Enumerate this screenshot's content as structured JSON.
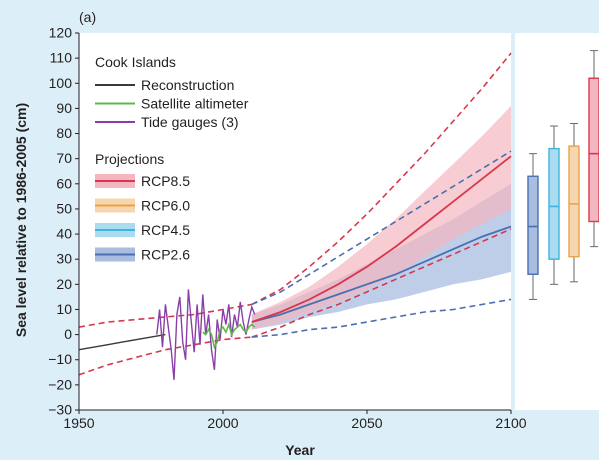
{
  "panel_label": "(a)",
  "chart_data": {
    "type": "line",
    "xlabel": "Year",
    "ylabel": "Sea level relative to 1986-2005 (cm)",
    "xlim": [
      1950,
      2100
    ],
    "ylim": [
      -30,
      120
    ],
    "x_ticks": [
      1950,
      2000,
      2050,
      2100
    ],
    "y_ticks": [
      120,
      110,
      100,
      90,
      80,
      70,
      60,
      50,
      40,
      30,
      20,
      10,
      0,
      -10,
      -20,
      -30
    ],
    "grid": false,
    "legend": {
      "location": "top-left",
      "title": "Cook Islands",
      "observations": [
        {
          "label": "Reconstruction",
          "color": "#3a3a3a"
        },
        {
          "label": "Satellite altimeter",
          "color": "#5cb84a"
        },
        {
          "label": "Tide gauges (3)",
          "color": "#8a3fa6"
        }
      ],
      "projections_title": "Projections",
      "projections": [
        {
          "label": "RCP8.5",
          "color": "#d8374c",
          "fill": "#f4b7c1"
        },
        {
          "label": "RCP6.0",
          "color": "#e8a24a",
          "fill": "#f6d6ae"
        },
        {
          "label": "RCP4.5",
          "color": "#3fb4dc",
          "fill": "#a9dcf0"
        },
        {
          "label": "RCP2.6",
          "color": "#4a6fb0",
          "fill": "#a9bde0"
        }
      ]
    },
    "reconstruction": {
      "x": [
        1950,
        1955,
        1960,
        1965,
        1970,
        1975,
        1980
      ],
      "y": [
        -6,
        -5,
        -4,
        -3,
        -2,
        -1,
        0
      ]
    },
    "tide_gauges": {
      "x": [
        1977,
        1978,
        1979,
        1980,
        1981,
        1982,
        1983,
        1984,
        1985,
        1986,
        1987,
        1988,
        1989,
        1990,
        1991,
        1992,
        1993,
        1994,
        1995,
        1996,
        1997,
        1998,
        1999,
        2000,
        2001,
        2002,
        2003,
        2004,
        2005,
        2006,
        2007,
        2008,
        2009,
        2010,
        2011
      ],
      "y": [
        0,
        10,
        -5,
        12,
        3,
        -6,
        -18,
        8,
        15,
        -3,
        -10,
        18,
        5,
        -7,
        12,
        -4,
        16,
        0,
        8,
        -6,
        -14,
        6,
        -2,
        10,
        4,
        12,
        -1,
        8,
        3,
        13,
        5,
        0,
        6,
        11,
        8
      ]
    },
    "satellite": {
      "x": [
        1993,
        1994,
        1995,
        1996,
        1997,
        1998,
        1999,
        2000,
        2001,
        2002,
        2003,
        2004,
        2005,
        2006,
        2007,
        2008,
        2009,
        2010,
        2011
      ],
      "y": [
        1,
        0,
        2,
        0,
        -5,
        -3,
        2,
        3,
        1,
        4,
        0,
        2,
        3,
        4,
        2,
        1,
        3,
        4,
        3
      ]
    },
    "projections": {
      "x": [
        2010,
        2020,
        2030,
        2040,
        2050,
        2060,
        2070,
        2080,
        2090,
        2100
      ],
      "rcp85": {
        "mean": [
          5,
          9,
          14,
          20,
          27,
          35,
          44,
          53,
          62,
          71
        ],
        "lower": [
          2,
          5,
          9,
          13,
          18,
          24,
          31,
          38,
          44,
          50
        ],
        "upper": [
          8,
          13,
          19,
          27,
          36,
          46,
          57,
          68,
          79,
          91
        ]
      },
      "rcp26": {
        "mean": [
          5,
          8,
          12,
          16,
          20,
          24,
          29,
          34,
          39,
          43
        ],
        "lower": [
          2,
          4,
          7,
          9,
          12,
          14,
          17,
          20,
          22,
          25
        ],
        "upper": [
          8,
          12,
          17,
          22,
          28,
          34,
          40,
          46,
          53,
          60
        ]
      },
      "rcp85_outer": {
        "lower": [
          -1,
          3,
          8,
          12,
          17,
          22,
          27,
          32,
          37,
          42
        ],
        "upper": [
          12,
          18,
          27,
          37,
          48,
          60,
          72,
          85,
          98,
          112
        ]
      },
      "rcp26_outer": {
        "lower": [
          -1,
          0,
          2,
          3,
          5,
          7,
          9,
          10,
          12,
          14
        ],
        "upper": [
          12,
          17,
          24,
          31,
          38,
          45,
          52,
          59,
          66,
          73
        ]
      },
      "pre_extension": {
        "x": [
          1950,
          1960,
          1970,
          1980,
          1990,
          2000,
          2010
        ],
        "upper": [
          3,
          5,
          6,
          7,
          8,
          10,
          12
        ],
        "lower": [
          -16,
          -12,
          -9,
          -6,
          -4,
          -2,
          -1
        ]
      }
    },
    "boxplots_2100": [
      {
        "scenario": "RCP2.6",
        "color": "#4a6fb0",
        "min": 14,
        "q1": 24,
        "median": 43,
        "q3": 63,
        "max": 72
      },
      {
        "scenario": "RCP4.5",
        "color": "#3fb4dc",
        "min": 20,
        "q1": 30,
        "median": 51,
        "q3": 74,
        "max": 83
      },
      {
        "scenario": "RCP6.0",
        "color": "#e8a24a",
        "min": 21,
        "q1": 31,
        "median": 52,
        "q3": 75,
        "max": 84
      },
      {
        "scenario": "RCP8.5",
        "color": "#d8374c",
        "min": 35,
        "q1": 45,
        "median": 72,
        "q3": 102,
        "max": 113
      }
    ]
  }
}
